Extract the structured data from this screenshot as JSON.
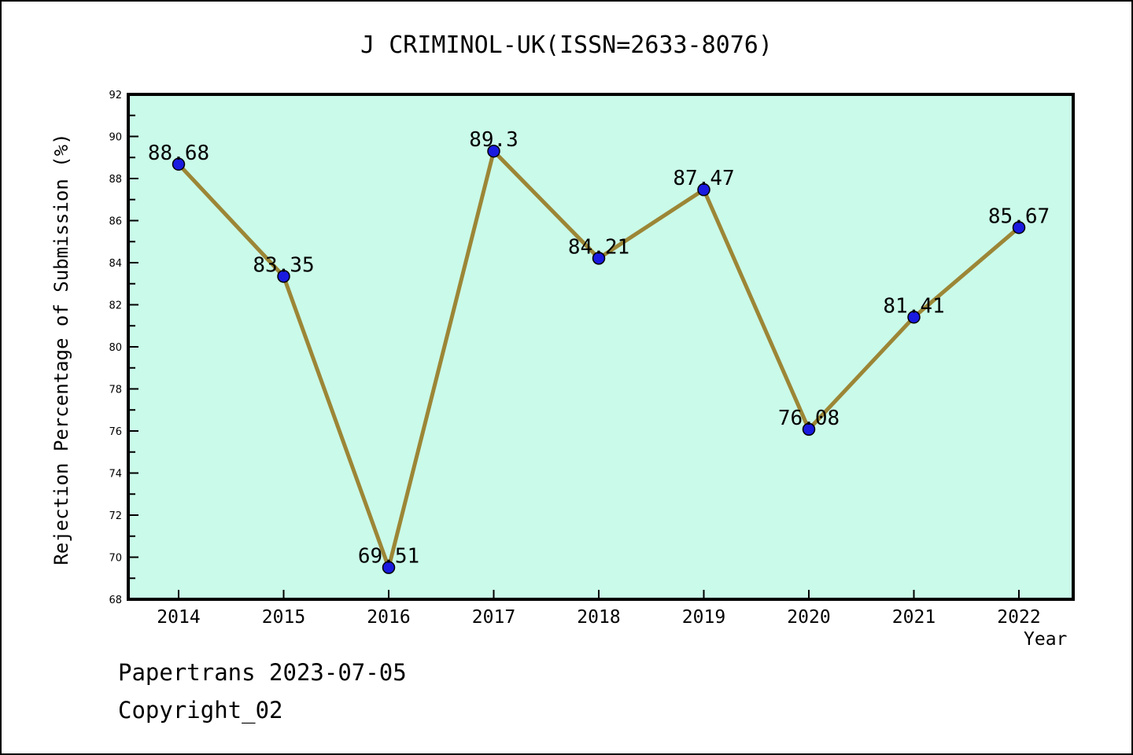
{
  "title": "J CRIMINOL-UK(ISSN=2633-8076)",
  "footer": {
    "publisher_line": "Papertrans 2023-07-05",
    "copyright_line": "Copyright_02"
  },
  "chart_data": {
    "type": "line",
    "title": "J CRIMINOL-UK(ISSN=2633-8076)",
    "xlabel": "Year",
    "ylabel": "Rejection Percentage of Submission (%)",
    "categories": [
      "2014",
      "2015",
      "2016",
      "2017",
      "2018",
      "2019",
      "2020",
      "2021",
      "2022"
    ],
    "series": [
      {
        "name": "Rejection Percentage of Submission",
        "values": [
          88.68,
          83.35,
          69.51,
          89.3,
          84.21,
          87.47,
          76.08,
          81.41,
          85.67
        ]
      }
    ],
    "point_labels": [
      "88.68",
      "83.35",
      "69.51",
      "89.3",
      "84.21",
      "87.47",
      "76.08",
      "81.41",
      "85.67"
    ],
    "ylim": [
      68,
      92
    ],
    "ytick_step": 2,
    "yminor_step": 1,
    "grid": false,
    "legend_position": "none",
    "colors": {
      "figure_background": "#ffffff",
      "plot_background": "#cafae9",
      "line": "#9c8636",
      "marker_fill": "#1a1ae0",
      "marker_edge": "#000000",
      "axis": "#000000",
      "text": "#000000"
    }
  }
}
